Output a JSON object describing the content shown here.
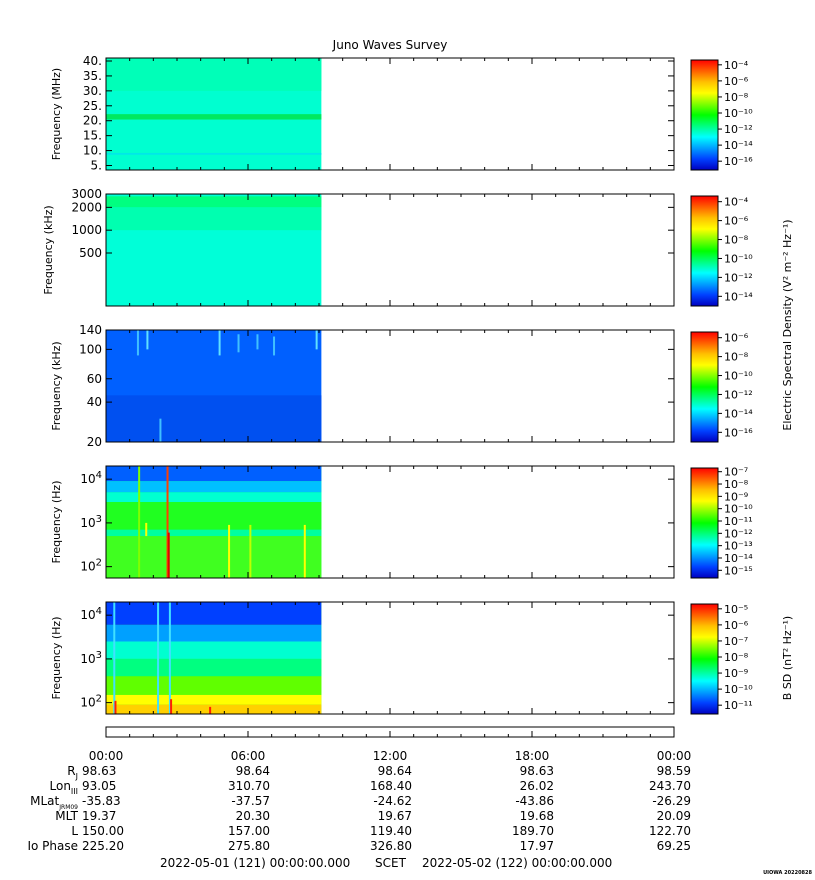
{
  "title": "Juno Waves Survey",
  "footer_left": "2022-05-01 (121) 00:00:00.000",
  "footer_mid": "SCET",
  "footer_right": "2022-05-02 (122) 00:00:00.000",
  "credit": "UIOWA 20220828",
  "colorbar_shared_label": "Electric Spectral Density (V² m⁻² Hz⁻¹)",
  "colormap": [
    "#0000c0",
    "#0040ff",
    "#00a0ff",
    "#00ffff",
    "#00ff80",
    "#00ff00",
    "#80ff00",
    "#ffff00",
    "#ffc000",
    "#ff6000",
    "#ff0000"
  ],
  "chart_data": [
    {
      "type": "heatmap",
      "ylabel": "Frequency (MHz)",
      "scale": "linear",
      "ylim": [
        3.5,
        41
      ],
      "ticks": [
        {
          "v": 40,
          "label": "40."
        },
        {
          "v": 35,
          "label": "35."
        },
        {
          "v": 30,
          "label": "30."
        },
        {
          "v": 25,
          "label": "25."
        },
        {
          "v": 20,
          "label": "20."
        },
        {
          "v": 15,
          "label": "15."
        },
        {
          "v": 10,
          "label": "10."
        },
        {
          "v": 5,
          "label": "5."
        }
      ],
      "data_extent_hours": [
        0,
        9.1
      ],
      "colorbar_labels": [
        "10⁻⁴",
        "10⁻⁶",
        "10⁻⁸",
        "10⁻¹⁰",
        "10⁻¹²",
        "10⁻¹⁴",
        "10⁻¹⁶"
      ],
      "background_color": "#00ffd0",
      "bands": [
        {
          "from": 20.4,
          "to": 22.2,
          "color": "#00e860"
        },
        {
          "from": 30.0,
          "to": 41.0,
          "color": "#00ffb8"
        },
        {
          "from": 8.6,
          "to": 9.2,
          "color": "#00e8e8"
        }
      ],
      "spikes": []
    },
    {
      "type": "heatmap",
      "ylabel": "Frequency (kHz)",
      "scale": "log",
      "ylim": [
        100,
        3000
      ],
      "ticks": [
        {
          "v": 3000,
          "label": "3000"
        },
        {
          "v": 2000,
          "label": "2000"
        },
        {
          "v": 1000,
          "label": "1000"
        },
        {
          "v": 500,
          "label": "500"
        }
      ],
      "data_extent_hours": [
        0,
        9.1
      ],
      "colorbar_labels": [
        "10⁻⁴",
        "10⁻⁶",
        "10⁻⁸",
        "10⁻¹⁰",
        "10⁻¹²",
        "10⁻¹⁴"
      ],
      "background_color": "#00ffd8",
      "bands": [
        {
          "from": 2000,
          "to": 2800,
          "color": "#00ff80"
        },
        {
          "from": 1000,
          "to": 2000,
          "color": "#00ffb0"
        }
      ],
      "spikes": []
    },
    {
      "type": "heatmap",
      "ylabel": "Frequency (kHz)",
      "scale": "log",
      "ylim": [
        20,
        140
      ],
      "ticks": [
        {
          "v": 140,
          "label": "140"
        },
        {
          "v": 100,
          "label": "100"
        },
        {
          "v": 60,
          "label": "60"
        },
        {
          "v": 40,
          "label": "40"
        },
        {
          "v": 20,
          "label": "20"
        }
      ],
      "data_extent_hours": [
        0,
        9.1
      ],
      "colorbar_labels": [
        "10⁻⁶",
        "10⁻⁸",
        "10⁻¹⁰",
        "10⁻¹²",
        "10⁻¹⁴",
        "10⁻¹⁶"
      ],
      "background_color": "#0060ff",
      "bands": [
        {
          "from": 20,
          "to": 45,
          "color": "#0050f0"
        }
      ],
      "spikes": [
        {
          "t": 1.35,
          "from": 90,
          "to": 140,
          "color": "#40c0ff"
        },
        {
          "t": 1.75,
          "from": 100,
          "to": 140,
          "color": "#60e0ff"
        },
        {
          "t": 2.3,
          "from": 20,
          "to": 30,
          "color": "#40c0ff"
        },
        {
          "t": 4.8,
          "from": 90,
          "to": 140,
          "color": "#60e0ff"
        },
        {
          "t": 5.6,
          "from": 95,
          "to": 130,
          "color": "#40c0ff"
        },
        {
          "t": 6.4,
          "from": 100,
          "to": 130,
          "color": "#40c0ff"
        },
        {
          "t": 7.1,
          "from": 90,
          "to": 125,
          "color": "#40c0ff"
        },
        {
          "t": 8.9,
          "from": 100,
          "to": 140,
          "color": "#60e0ff"
        }
      ]
    },
    {
      "type": "heatmap",
      "ylabel": "Frequency (Hz)",
      "scale": "log",
      "ylim": [
        55,
        20000
      ],
      "ticks": [
        {
          "v": 10000,
          "label": "10",
          "sup": "4"
        },
        {
          "v": 1000,
          "label": "10",
          "sup": "3"
        },
        {
          "v": 100,
          "label": "10",
          "sup": "2"
        }
      ],
      "data_extent_hours": [
        0,
        9.1
      ],
      "colorbar_labels": [
        "10⁻⁷",
        "10⁻⁸",
        "10⁻⁹",
        "10⁻¹⁰",
        "10⁻¹¹",
        "10⁻¹²",
        "10⁻¹³",
        "10⁻¹⁴",
        "10⁻¹⁵"
      ],
      "background_color": "#00ff60",
      "bands": [
        {
          "from": 9000,
          "to": 20000,
          "color": "#0060ff"
        },
        {
          "from": 5000,
          "to": 9000,
          "color": "#00c0ff"
        },
        {
          "from": 3000,
          "to": 5000,
          "color": "#00ffd0"
        },
        {
          "from": 700,
          "to": 3000,
          "color": "#20ff20"
        },
        {
          "from": 500,
          "to": 700,
          "color": "#00ffa0"
        },
        {
          "from": 55,
          "to": 500,
          "color": "#40ff20"
        }
      ],
      "spikes": [
        {
          "t": 1.4,
          "from": 55,
          "to": 20000,
          "color": "#80ff00"
        },
        {
          "t": 1.7,
          "from": 500,
          "to": 1000,
          "color": "#ffff00"
        },
        {
          "t": 2.6,
          "from": 55,
          "to": 20000,
          "color": "#ff4000"
        },
        {
          "t": 2.65,
          "from": 55,
          "to": 600,
          "color": "#e00000"
        },
        {
          "t": 5.2,
          "from": 55,
          "to": 900,
          "color": "#ffff00"
        },
        {
          "t": 6.1,
          "from": 55,
          "to": 900,
          "color": "#c0ff00"
        },
        {
          "t": 8.4,
          "from": 55,
          "to": 900,
          "color": "#ffff00"
        }
      ]
    },
    {
      "type": "heatmap",
      "ylabel": "Frequency (Hz)",
      "scale": "log",
      "ylim": [
        55,
        20000
      ],
      "ticks": [
        {
          "v": 10000,
          "label": "10",
          "sup": "4"
        },
        {
          "v": 1000,
          "label": "10",
          "sup": "3"
        },
        {
          "v": 100,
          "label": "10",
          "sup": "2"
        }
      ],
      "data_extent_hours": [
        0,
        9.1
      ],
      "colorbar_label": "B SD (nT² Hz⁻¹)",
      "colorbar_labels": [
        "10⁻⁵",
        "10⁻⁶",
        "10⁻⁷",
        "10⁻⁸",
        "10⁻⁹",
        "10⁻¹⁰",
        "10⁻¹¹"
      ],
      "background_color": "#40ff20",
      "bands": [
        {
          "from": 6000,
          "to": 20000,
          "color": "#0040ff"
        },
        {
          "from": 2500,
          "to": 6000,
          "color": "#00a0ff"
        },
        {
          "from": 1000,
          "to": 2500,
          "color": "#00ffd0"
        },
        {
          "from": 400,
          "to": 1000,
          "color": "#00ff80"
        },
        {
          "from": 150,
          "to": 400,
          "color": "#60ff00"
        },
        {
          "from": 90,
          "to": 150,
          "color": "#ffff00"
        },
        {
          "from": 55,
          "to": 90,
          "color": "#ffd000"
        }
      ],
      "spikes": [
        {
          "t": 0.35,
          "from": 55,
          "to": 20000,
          "color": "#40e0ff"
        },
        {
          "t": 0.4,
          "from": 55,
          "to": 110,
          "color": "#ff2000"
        },
        {
          "t": 2.2,
          "from": 55,
          "to": 20000,
          "color": "#40e0ff"
        },
        {
          "t": 2.7,
          "from": 55,
          "to": 20000,
          "color": "#40e0ff"
        },
        {
          "t": 2.75,
          "from": 55,
          "to": 120,
          "color": "#ff2000"
        },
        {
          "t": 4.4,
          "from": 55,
          "to": 80,
          "color": "#ff2000"
        }
      ]
    }
  ],
  "time_axis": {
    "xlim_hours": [
      0,
      24
    ],
    "tick_labels": [
      "00:00",
      "06:00",
      "12:00",
      "18:00",
      "00:00"
    ],
    "rows": [
      {
        "label": "R",
        "sub": "J",
        "values": [
          "98.63",
          "98.64",
          "98.64",
          "98.63",
          "98.59"
        ]
      },
      {
        "label": "Lon",
        "sub": "III",
        "values": [
          "93.05",
          "310.70",
          "168.40",
          "26.02",
          "243.70"
        ]
      },
      {
        "label": "MLat",
        "sub": "JRM09",
        "values": [
          "-35.83",
          "-37.57",
          "-24.62",
          "-43.86",
          "-26.29"
        ]
      },
      {
        "label": "MLT",
        "sub": "",
        "values": [
          "19.37",
          "20.30",
          "19.67",
          "19.68",
          "20.09"
        ]
      },
      {
        "label": "L",
        "sub": "",
        "values": [
          "150.00",
          "157.00",
          "119.40",
          "189.70",
          "122.70"
        ]
      },
      {
        "label": "Io Phase",
        "sub": "",
        "values": [
          "225.20",
          "275.80",
          "326.80",
          "17.97",
          "69.25"
        ]
      }
    ]
  }
}
